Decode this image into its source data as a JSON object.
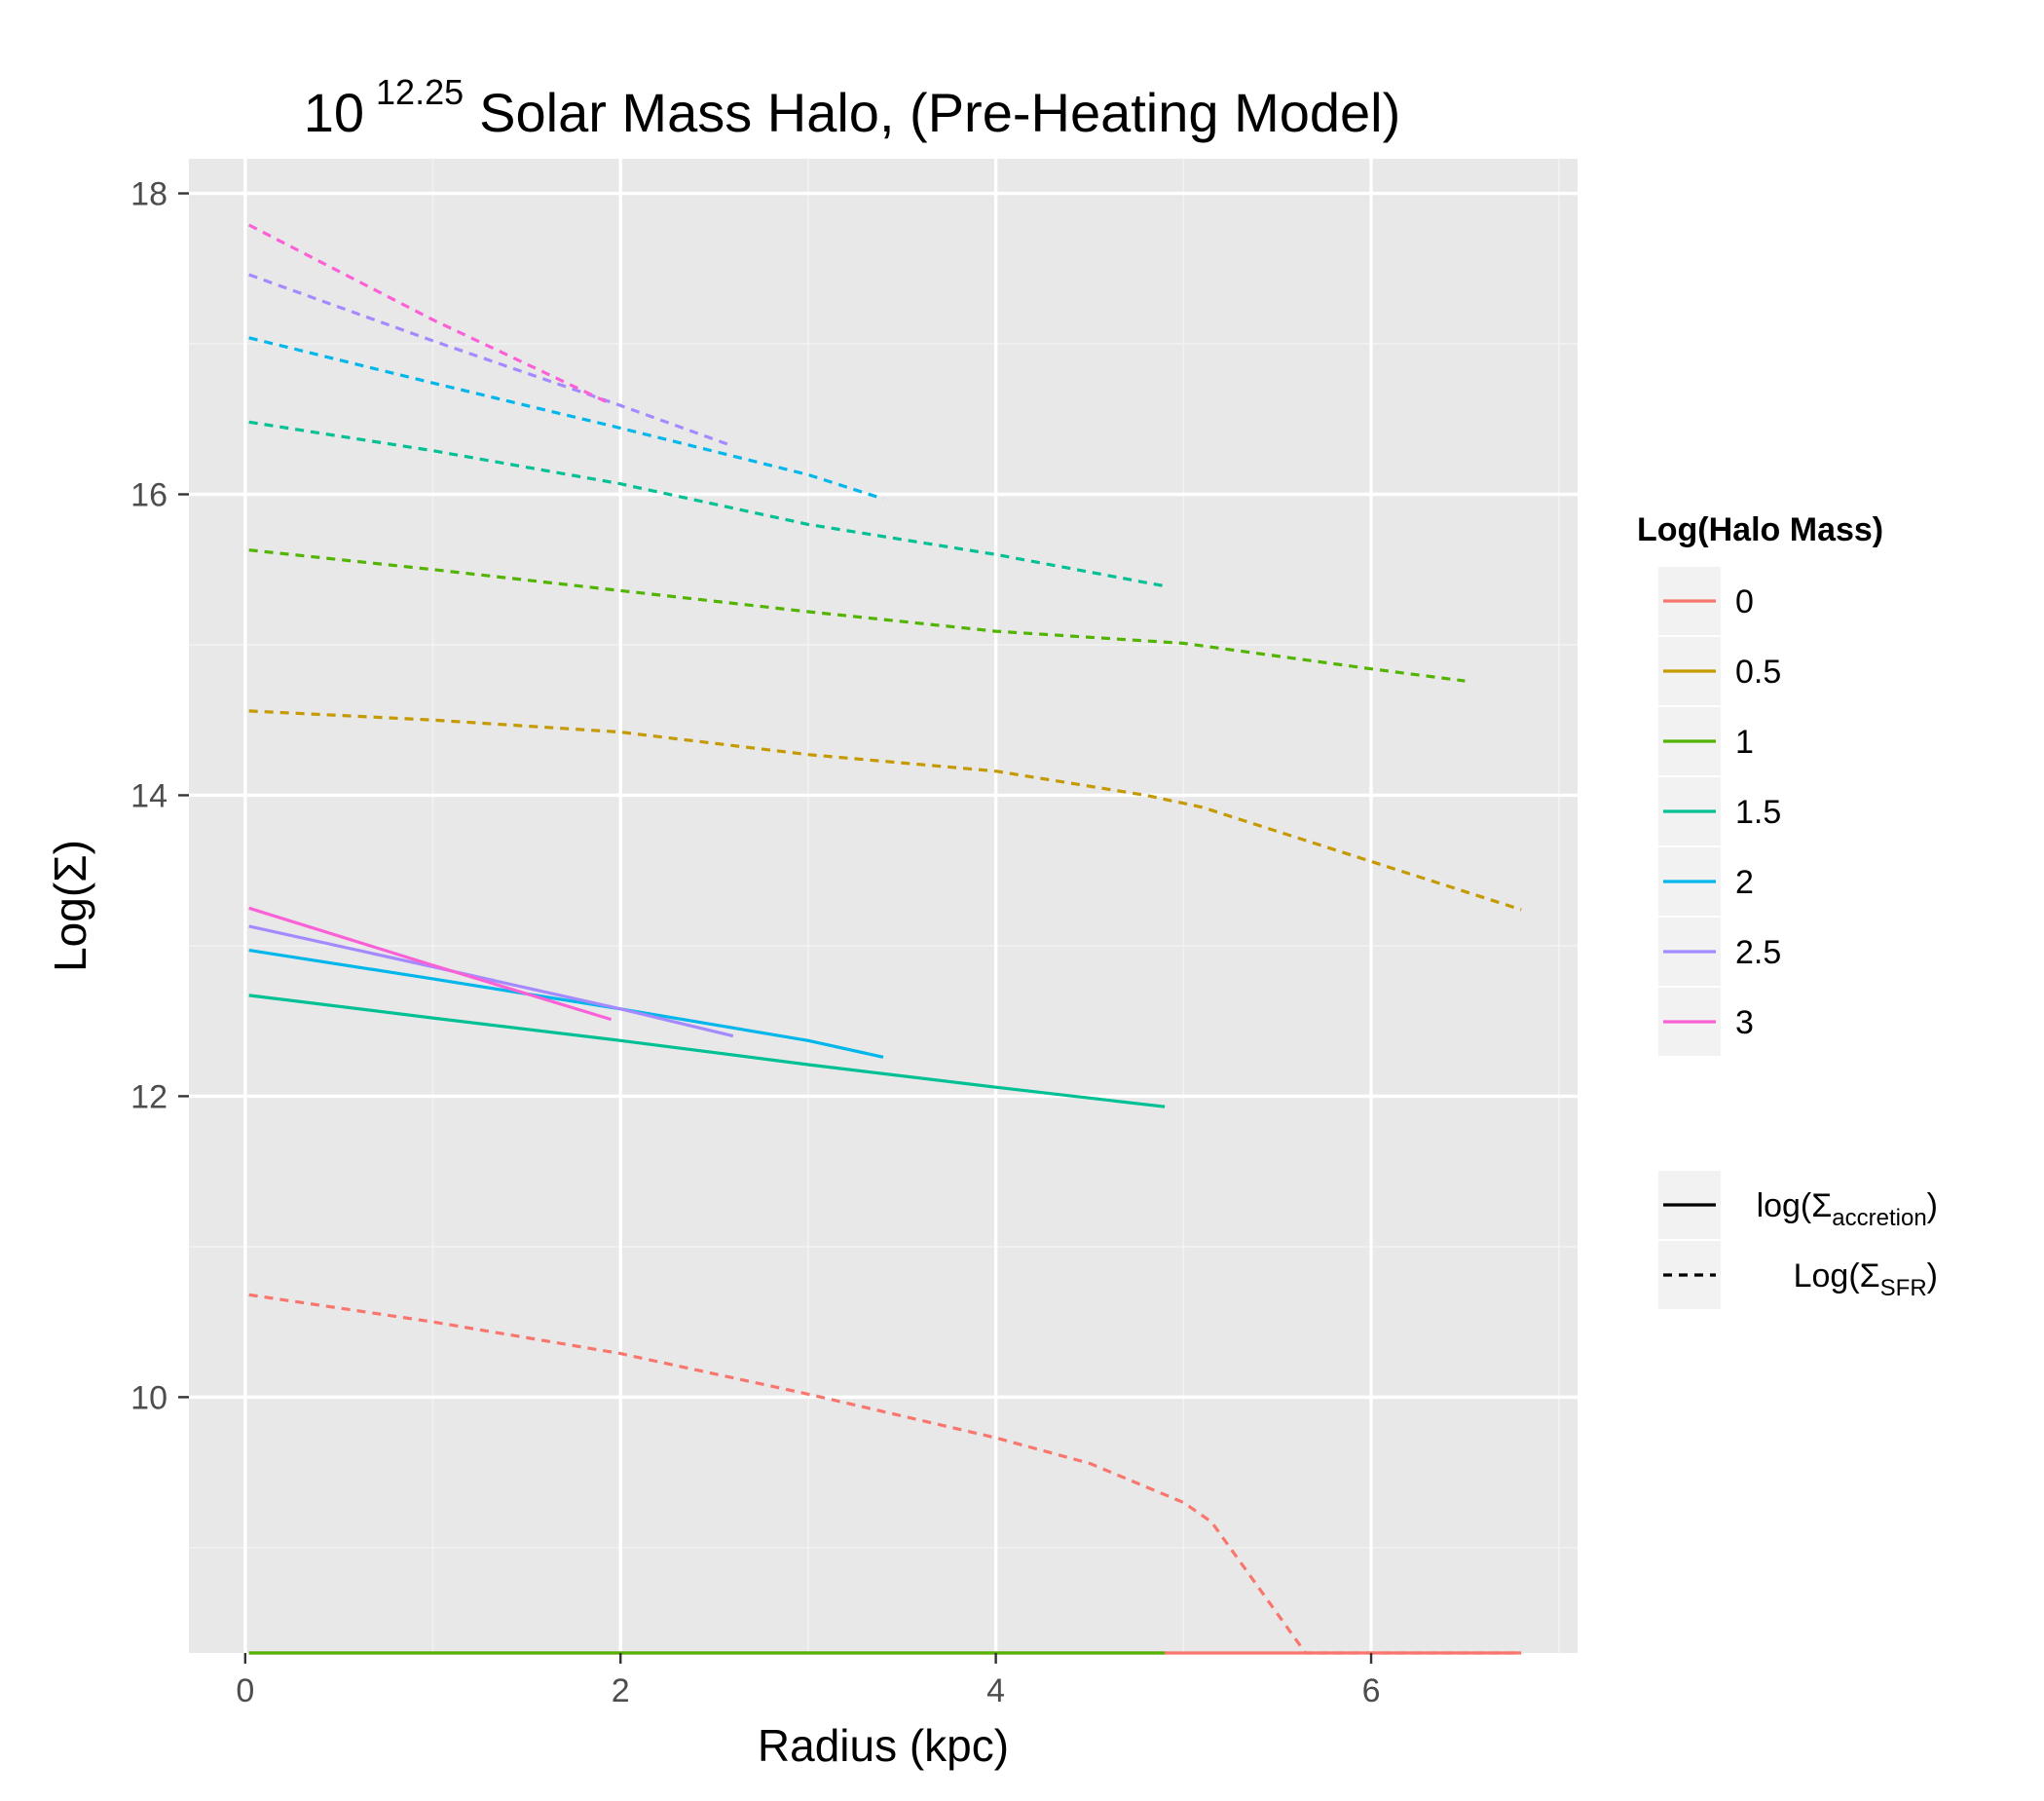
{
  "chart_data": {
    "type": "line",
    "title": {
      "main": "10",
      "superscript": "12.25",
      "rest": "Solar Mass Halo, (Pre-Heating Model)"
    },
    "xlabel": "Radius (kpc)",
    "ylabel": "Log(Σ)",
    "xlim": [
      -0.3,
      7.1
    ],
    "ylim": [
      8.3,
      18.23
    ],
    "x_ticks": [
      0,
      2,
      4,
      6
    ],
    "x_tick_labels": [
      "0",
      "2",
      "4",
      "6"
    ],
    "y_ticks": [
      10,
      12,
      14,
      16,
      18
    ],
    "y_tick_labels": [
      "10",
      "12",
      "14",
      "16",
      "18"
    ],
    "grid": true,
    "legend_position": "right",
    "color_legend": {
      "title": "Log(Halo Mass)",
      "entries": [
        {
          "label": "0",
          "color": "#F8766D"
        },
        {
          "label": "0.5",
          "color": "#C49A00"
        },
        {
          "label": "1",
          "color": "#53B400"
        },
        {
          "label": "1.5",
          "color": "#00C094"
        },
        {
          "label": "2",
          "color": "#00B6EB"
        },
        {
          "label": "2.5",
          "color": "#A58AFF"
        },
        {
          "label": "3",
          "color": "#FB61D7"
        }
      ]
    },
    "linetype_legend": {
      "entries": [
        {
          "label_pre": "log(Σ",
          "label_sub": "accretion",
          "label_post": ")",
          "dash": "solid"
        },
        {
          "label_pre": "Log(Σ",
          "label_sub": "SFR",
          "label_post": ")",
          "dash": "dashed"
        }
      ]
    },
    "series": [
      {
        "group": "0",
        "kind": "SFR",
        "color": "#F8766D",
        "dash": "dashed",
        "x": [
          0.02,
          1.0,
          2.0,
          3.0,
          4.0,
          4.5,
          5.0,
          5.15,
          5.65,
          6.8
        ],
        "y": [
          10.68,
          10.5,
          10.29,
          10.02,
          9.73,
          9.56,
          9.3,
          9.17,
          8.3,
          8.3
        ]
      },
      {
        "group": "0",
        "kind": "accretion",
        "color": "#F8766D",
        "dash": "solid",
        "x": [
          0.02,
          6.8
        ],
        "y": [
          8.3,
          8.3
        ]
      },
      {
        "group": "0.5",
        "kind": "SFR",
        "color": "#C49A00",
        "dash": "dashed",
        "x": [
          0.02,
          1.0,
          2.0,
          3.0,
          4.0,
          4.8,
          5.1,
          6.0,
          6.8
        ],
        "y": [
          14.56,
          14.5,
          14.42,
          14.27,
          14.16,
          14.0,
          13.92,
          13.56,
          13.24
        ]
      },
      {
        "group": "1",
        "kind": "SFR",
        "color": "#53B400",
        "dash": "dashed",
        "x": [
          0.02,
          1.0,
          2.0,
          3.0,
          4.0,
          5.0,
          6.0,
          6.5
        ],
        "y": [
          15.63,
          15.5,
          15.36,
          15.22,
          15.09,
          15.01,
          14.84,
          14.76
        ]
      },
      {
        "group": "1",
        "kind": "accretion",
        "color": "#53B400",
        "dash": "solid",
        "x": [
          0.02,
          4.9
        ],
        "y": [
          8.3,
          8.3
        ]
      },
      {
        "group": "1.5",
        "kind": "SFR",
        "color": "#00C094",
        "dash": "dashed",
        "x": [
          0.02,
          1.0,
          2.0,
          3.0,
          4.0,
          4.9
        ],
        "y": [
          16.48,
          16.29,
          16.07,
          15.8,
          15.6,
          15.39
        ]
      },
      {
        "group": "1.5",
        "kind": "accretion",
        "color": "#00C094",
        "dash": "solid",
        "x": [
          0.02,
          1.0,
          2.0,
          3.0,
          4.0,
          4.9
        ],
        "y": [
          12.67,
          12.52,
          12.37,
          12.21,
          12.06,
          11.93
        ]
      },
      {
        "group": "2",
        "kind": "SFR",
        "color": "#00B6EB",
        "dash": "dashed",
        "x": [
          0.02,
          1.0,
          2.0,
          3.0,
          3.4
        ],
        "y": [
          17.04,
          16.74,
          16.44,
          16.13,
          15.97
        ]
      },
      {
        "group": "2",
        "kind": "accretion",
        "color": "#00B6EB",
        "dash": "solid",
        "x": [
          0.02,
          1.0,
          2.0,
          3.0,
          3.4
        ],
        "y": [
          12.97,
          12.78,
          12.58,
          12.37,
          12.26
        ]
      },
      {
        "group": "2.5",
        "kind": "SFR",
        "color": "#A58AFF",
        "dash": "dashed",
        "x": [
          0.02,
          1.0,
          2.0,
          2.6
        ],
        "y": [
          17.46,
          17.02,
          16.59,
          16.32
        ]
      },
      {
        "group": "2.5",
        "kind": "accretion",
        "color": "#A58AFF",
        "dash": "solid",
        "x": [
          0.02,
          1.0,
          2.0,
          2.6
        ],
        "y": [
          13.13,
          12.86,
          12.58,
          12.4
        ]
      },
      {
        "group": "3",
        "kind": "SFR",
        "color": "#FB61D7",
        "dash": "dashed",
        "x": [
          0.02,
          1.0,
          1.95
        ],
        "y": [
          17.79,
          17.16,
          16.6
        ]
      },
      {
        "group": "3",
        "kind": "accretion",
        "color": "#FB61D7",
        "dash": "solid",
        "x": [
          0.02,
          1.0,
          1.95
        ],
        "y": [
          13.25,
          12.87,
          12.51
        ]
      }
    ]
  }
}
